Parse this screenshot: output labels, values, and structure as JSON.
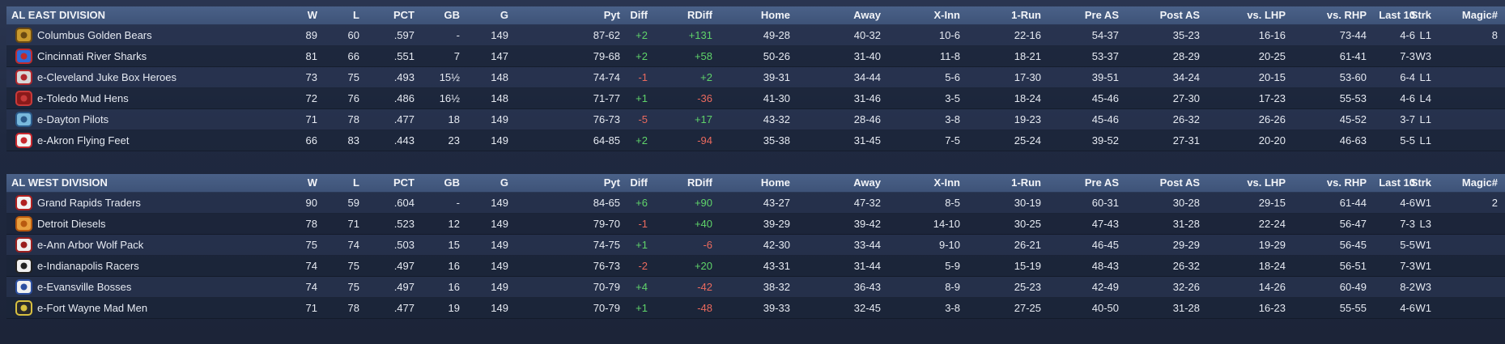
{
  "columns": {
    "team": "",
    "w": "W",
    "l": "L",
    "pct": "PCT",
    "gb": "GB",
    "g": "G",
    "pyt": "Pyt",
    "diff": "Diff",
    "rdiff": "RDiff",
    "home": "Home",
    "away": "Away",
    "xinn": "X-Inn",
    "onerun": "1-Run",
    "preas": "Pre AS",
    "postas": "Post AS",
    "lhp": "vs. LHP",
    "rhp": "vs. RHP",
    "last10": "Last 10",
    "strk": "Strk",
    "magic": "Magic#"
  },
  "colors": {
    "positive": "#5fd36a",
    "negative": "#ea6a5e",
    "header": "#4a6188"
  },
  "divisions": [
    {
      "title": "AL EAST DIVISION",
      "teams": [
        {
          "logo": "cgb-logo-icon",
          "name": "Columbus Golden Bears",
          "w": "89",
          "l": "60",
          "pct": ".597",
          "gb": "-",
          "g": "149",
          "pyt": "87-62",
          "diff": "+2",
          "rdiff": "+131",
          "home": "49-28",
          "away": "40-32",
          "xinn": "10-6",
          "onerun": "22-16",
          "preas": "54-37",
          "postas": "35-23",
          "lhp": "16-16",
          "rhp": "73-44",
          "last10": "4-6",
          "strk": "L1",
          "magic": "8"
        },
        {
          "logo": "crs-logo-icon",
          "name": "Cincinnati River Sharks",
          "w": "81",
          "l": "66",
          "pct": ".551",
          "gb": "7",
          "g": "147",
          "pyt": "79-68",
          "diff": "+2",
          "rdiff": "+58",
          "home": "50-26",
          "away": "31-40",
          "xinn": "11-8",
          "onerun": "18-21",
          "preas": "53-37",
          "postas": "28-29",
          "lhp": "20-25",
          "rhp": "61-41",
          "last10": "7-3",
          "strk": "W3",
          "magic": ""
        },
        {
          "logo": "cjb-logo-icon",
          "name": "e-Cleveland Juke Box Heroes",
          "w": "73",
          "l": "75",
          "pct": ".493",
          "gb": "15½",
          "g": "148",
          "pyt": "74-74",
          "diff": "-1",
          "rdiff": "+2",
          "home": "39-31",
          "away": "34-44",
          "xinn": "5-6",
          "onerun": "17-30",
          "preas": "39-51",
          "postas": "34-24",
          "lhp": "20-15",
          "rhp": "53-60",
          "last10": "6-4",
          "strk": "L1",
          "magic": ""
        },
        {
          "logo": "tmh-logo-icon",
          "name": "e-Toledo  Mud Hens",
          "w": "72",
          "l": "76",
          "pct": ".486",
          "gb": "16½",
          "g": "148",
          "pyt": "71-77",
          "diff": "+1",
          "rdiff": "-36",
          "home": "41-30",
          "away": "31-46",
          "xinn": "3-5",
          "onerun": "18-24",
          "preas": "45-46",
          "postas": "27-30",
          "lhp": "17-23",
          "rhp": "55-53",
          "last10": "4-6",
          "strk": "L4",
          "magic": ""
        },
        {
          "logo": "dp-logo-icon",
          "name": "e-Dayton Pilots",
          "w": "71",
          "l": "78",
          "pct": ".477",
          "gb": "18",
          "g": "149",
          "pyt": "76-73",
          "diff": "-5",
          "rdiff": "+17",
          "home": "43-32",
          "away": "28-46",
          "xinn": "3-8",
          "onerun": "19-23",
          "preas": "45-46",
          "postas": "26-32",
          "lhp": "26-26",
          "rhp": "45-52",
          "last10": "3-7",
          "strk": "L1",
          "magic": ""
        },
        {
          "logo": "aff-logo-icon",
          "name": "e-Akron  Flying Feet",
          "w": "66",
          "l": "83",
          "pct": ".443",
          "gb": "23",
          "g": "149",
          "pyt": "64-85",
          "diff": "+2",
          "rdiff": "-94",
          "home": "35-38",
          "away": "31-45",
          "xinn": "7-5",
          "onerun": "25-24",
          "preas": "39-52",
          "postas": "27-31",
          "lhp": "20-20",
          "rhp": "46-63",
          "last10": "5-5",
          "strk": "L1",
          "magic": ""
        }
      ]
    },
    {
      "title": "AL WEST DIVISION",
      "teams": [
        {
          "logo": "grt-logo-icon",
          "name": "Grand Rapids Traders",
          "w": "90",
          "l": "59",
          "pct": ".604",
          "gb": "-",
          "g": "149",
          "pyt": "84-65",
          "diff": "+6",
          "rdiff": "+90",
          "home": "43-27",
          "away": "47-32",
          "xinn": "8-5",
          "onerun": "30-19",
          "preas": "60-31",
          "postas": "30-28",
          "lhp": "29-15",
          "rhp": "61-44",
          "last10": "4-6",
          "strk": "W1",
          "magic": "2"
        },
        {
          "logo": "dd-logo-icon",
          "name": "Detroit Diesels",
          "w": "78",
          "l": "71",
          "pct": ".523",
          "gb": "12",
          "g": "149",
          "pyt": "79-70",
          "diff": "-1",
          "rdiff": "+40",
          "home": "39-29",
          "away": "39-42",
          "xinn": "14-10",
          "onerun": "30-25",
          "preas": "47-43",
          "postas": "31-28",
          "lhp": "22-24",
          "rhp": "56-47",
          "last10": "7-3",
          "strk": "L3",
          "magic": ""
        },
        {
          "logo": "aawp-logo-icon",
          "name": "e-Ann Arbor Wolf Pack",
          "w": "75",
          "l": "74",
          "pct": ".503",
          "gb": "15",
          "g": "149",
          "pyt": "74-75",
          "diff": "+1",
          "rdiff": "-6",
          "home": "42-30",
          "away": "33-44",
          "xinn": "9-10",
          "onerun": "26-21",
          "preas": "46-45",
          "postas": "29-29",
          "lhp": "19-29",
          "rhp": "56-45",
          "last10": "5-5",
          "strk": "W1",
          "magic": ""
        },
        {
          "logo": "ir-logo-icon",
          "name": "e-Indianapolis Racers",
          "w": "74",
          "l": "75",
          "pct": ".497",
          "gb": "16",
          "g": "149",
          "pyt": "76-73",
          "diff": "-2",
          "rdiff": "+20",
          "home": "43-31",
          "away": "31-44",
          "xinn": "5-9",
          "onerun": "15-19",
          "preas": "48-43",
          "postas": "26-32",
          "lhp": "18-24",
          "rhp": "56-51",
          "last10": "7-3",
          "strk": "W1",
          "magic": ""
        },
        {
          "logo": "eb-logo-icon",
          "name": "e-Evansville Bosses",
          "w": "74",
          "l": "75",
          "pct": ".497",
          "gb": "16",
          "g": "149",
          "pyt": "70-79",
          "diff": "+4",
          "rdiff": "-42",
          "home": "38-32",
          "away": "36-43",
          "xinn": "8-9",
          "onerun": "25-23",
          "preas": "42-49",
          "postas": "32-26",
          "lhp": "14-26",
          "rhp": "60-49",
          "last10": "8-2",
          "strk": "W3",
          "magic": ""
        },
        {
          "logo": "fwmm-logo-icon",
          "name": "e-Fort Wayne Mad Men",
          "w": "71",
          "l": "78",
          "pct": ".477",
          "gb": "19",
          "g": "149",
          "pyt": "70-79",
          "diff": "+1",
          "rdiff": "-48",
          "home": "39-33",
          "away": "32-45",
          "xinn": "3-8",
          "onerun": "27-25",
          "preas": "40-50",
          "postas": "31-28",
          "lhp": "16-23",
          "rhp": "55-55",
          "last10": "4-6",
          "strk": "W1",
          "magic": ""
        }
      ]
    }
  ]
}
